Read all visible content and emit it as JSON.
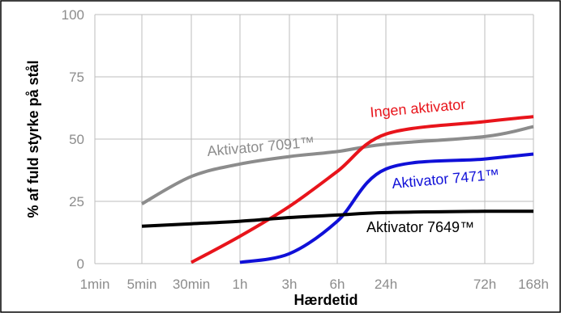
{
  "chart_data": {
    "type": "line",
    "xlabel": "Hærdetid",
    "ylabel": "% af fuld styrke på stål",
    "ylim": [
      0,
      100
    ],
    "x_ticks": [
      "1min",
      "5min",
      "30min",
      "1h",
      "3h",
      "6h",
      "24h",
      "72h",
      "168h"
    ],
    "y_ticks": [
      0,
      25,
      50,
      75,
      100
    ],
    "grid": true,
    "series": [
      {
        "name": "Aktivator 7091™",
        "color": "#8c8c8c",
        "x": [
          "5min",
          "30min",
          "1h",
          "3h",
          "6h",
          "24h",
          "72h",
          "168h"
        ],
        "values": [
          24,
          35,
          40,
          43,
          45,
          48,
          51,
          55
        ]
      },
      {
        "name": "Ingen aktivator",
        "color": "#e8141b",
        "x": [
          "30min",
          "1h",
          "3h",
          "6h",
          "24h",
          "72h",
          "168h"
        ],
        "values": [
          0.5,
          11,
          23,
          37,
          52,
          57,
          59
        ]
      },
      {
        "name": "Aktivator 7471™",
        "color": "#1010d8",
        "x": [
          "1h",
          "3h",
          "6h",
          "24h",
          "72h",
          "168h"
        ],
        "values": [
          0.5,
          4,
          17,
          38,
          42,
          44
        ]
      },
      {
        "name": "Aktivator 7649™",
        "color": "#000000",
        "x": [
          "5min",
          "30min",
          "1h",
          "3h",
          "6h",
          "24h",
          "72h",
          "168h"
        ],
        "values": [
          15,
          16,
          17,
          18.5,
          19.5,
          20.5,
          21,
          21
        ]
      }
    ]
  }
}
